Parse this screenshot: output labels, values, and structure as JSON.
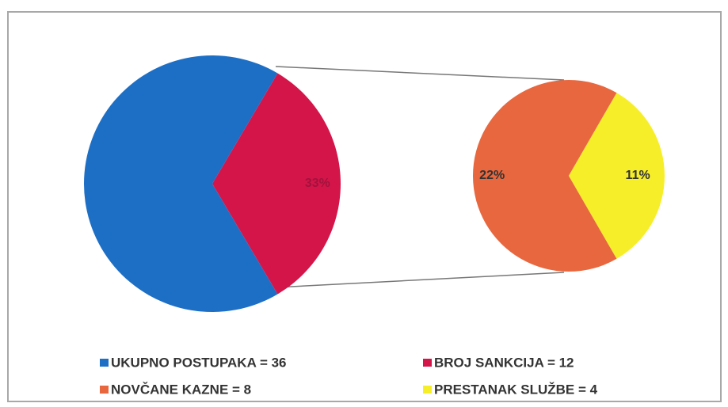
{
  "chart_data": {
    "type": "pie-of-pie",
    "legend": [
      "UKUPNO POSTUPAKA = 36",
      "BROJ SANKCIJA = 12",
      "NOVČANE KAZNE = 8",
      "PRESTANAK SLUŽBE = 4"
    ],
    "colors": [
      "#1d6fc6",
      "#d4154a",
      "#e8673f",
      "#f7ee2a"
    ],
    "values": [
      67,
      33,
      22,
      11
    ],
    "value_labels": [
      null,
      "33%",
      "22%",
      "11%"
    ]
  }
}
